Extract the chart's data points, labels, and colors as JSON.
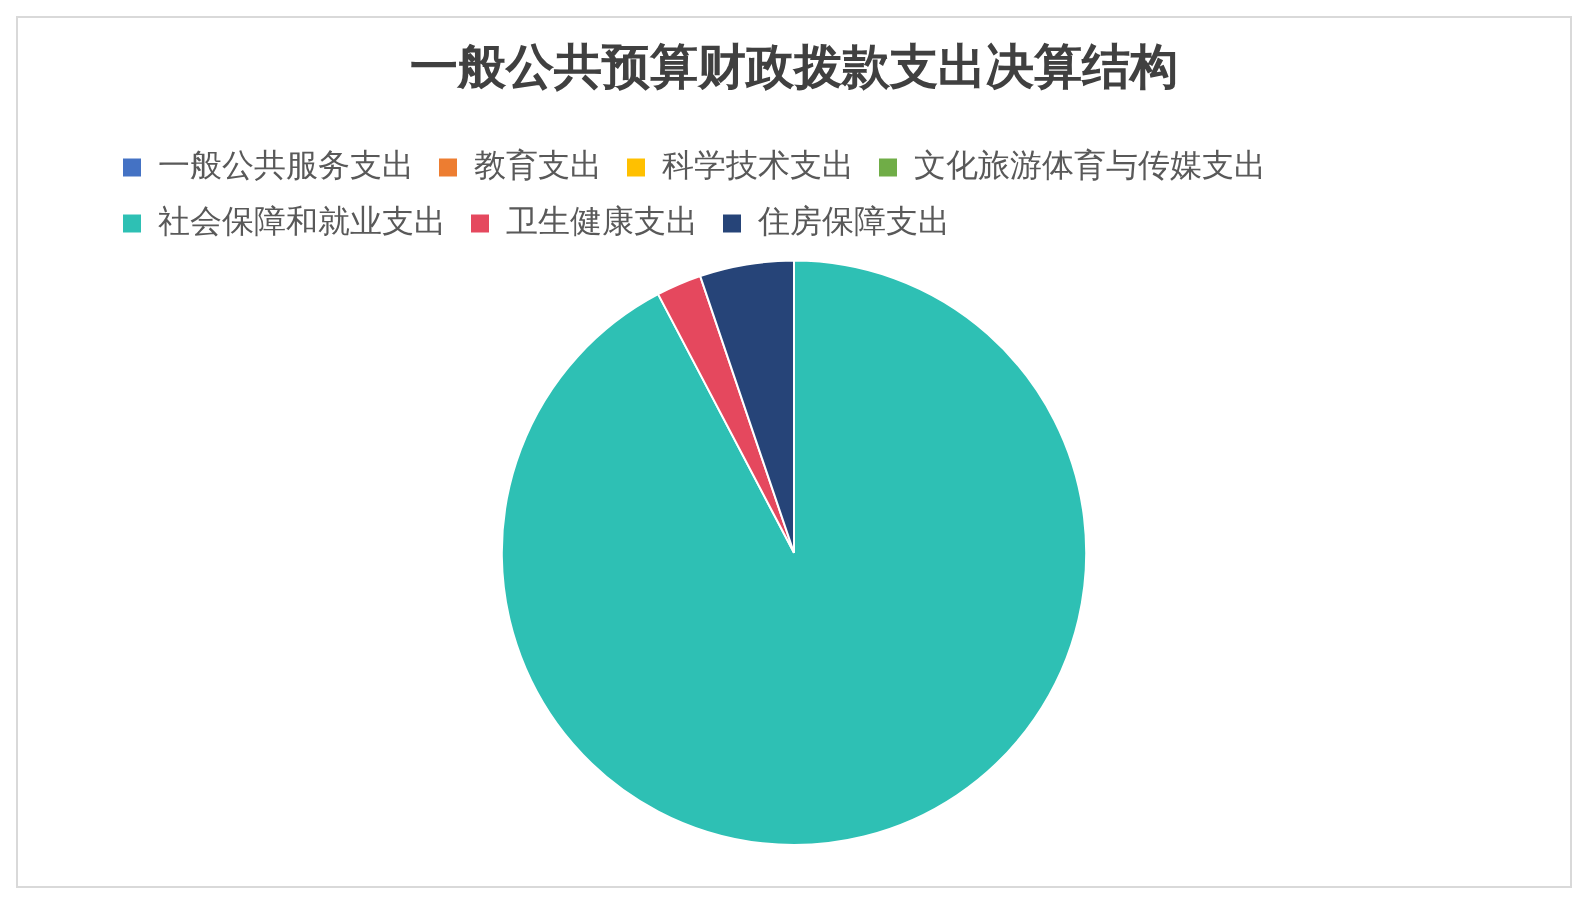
{
  "chart_data": {
    "type": "pie",
    "title": "一般公共预算财政拨款支出决算结构",
    "categories": [
      "一般公共服务支出",
      "教育支出",
      "科学技术支出",
      "文化旅游体育与传媒支出",
      "社会保障和就业支出",
      "卫生健康支出",
      "住房保障支出"
    ],
    "values": [
      0,
      0,
      0,
      0,
      92.3,
      2.5,
      5.2
    ],
    "colors": [
      "#4472c4",
      "#ed7d31",
      "#ffc000",
      "#70ad47",
      "#2ec0b4",
      "#e5485e",
      "#264478"
    ],
    "legend": "top"
  }
}
